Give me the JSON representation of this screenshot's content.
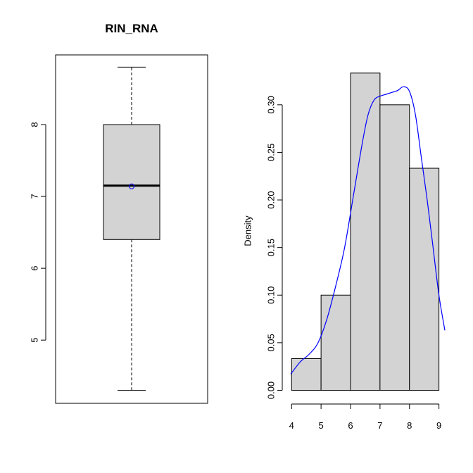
{
  "chart_data": [
    {
      "type": "box",
      "title": "RIN_RNA",
      "xlabel": "",
      "ylabel": "",
      "ylim": [
        4.12,
        8.97
      ],
      "yticks": [
        5,
        6,
        7,
        8
      ],
      "stats": {
        "min": 4.3,
        "q1": 6.4,
        "median": 7.15,
        "q3": 8.0,
        "max": 8.8,
        "mean": 7.14
      },
      "colors": {
        "box_fill": "#d3d3d3",
        "mean_marker": "#0000ff",
        "stroke": "#000000"
      }
    },
    {
      "type": "bar",
      "title": "",
      "xlabel": "",
      "ylabel": "Density",
      "xlim": [
        3.97,
        9.2
      ],
      "ylim": [
        -0.01,
        0.345
      ],
      "xticks": [
        4,
        5,
        6,
        7,
        8,
        9
      ],
      "yticks": [
        0.0,
        0.05,
        0.1,
        0.15,
        0.2,
        0.25,
        0.3
      ],
      "ytick_labels": [
        "0.00",
        "0.05",
        "0.10",
        "0.15",
        "0.20",
        "0.25",
        "0.30"
      ],
      "bins": [
        {
          "x0": 4,
          "x1": 5,
          "density": 0.0333
        },
        {
          "x0": 5,
          "x1": 6,
          "density": 0.1
        },
        {
          "x0": 6,
          "x1": 7,
          "density": 0.3333
        },
        {
          "x0": 7,
          "x1": 8,
          "density": 0.3
        },
        {
          "x0": 8,
          "x1": 9,
          "density": 0.2333
        }
      ],
      "density_curve": {
        "x": [
          3.97,
          4.3,
          4.6,
          4.9,
          5.2,
          5.5,
          5.8,
          6.1,
          6.4,
          6.6,
          6.8,
          7.0,
          7.2,
          7.4,
          7.6,
          7.8,
          8.0,
          8.2,
          8.4,
          8.6,
          8.8,
          9.0,
          9.2
        ],
        "y": [
          0.017,
          0.03,
          0.038,
          0.05,
          0.075,
          0.11,
          0.15,
          0.205,
          0.26,
          0.29,
          0.305,
          0.309,
          0.311,
          0.313,
          0.315,
          0.319,
          0.314,
          0.29,
          0.245,
          0.2,
          0.15,
          0.1,
          0.063
        ]
      },
      "colors": {
        "bar_fill": "#d3d3d3",
        "curve": "#0000ff",
        "stroke": "#000000"
      }
    }
  ]
}
